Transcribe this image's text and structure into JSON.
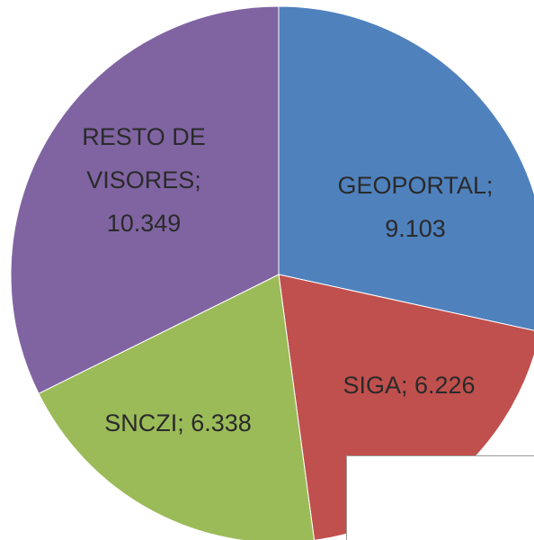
{
  "chart_data": {
    "type": "pie",
    "values": [
      9103,
      6226,
      6338,
      10349
    ],
    "value_labels": [
      "GEOPORTAL; 9.103",
      "SIGA; 6.226",
      "SNCZI; 6.338",
      "RESTO DE VISORES; 10.349"
    ],
    "colors": [
      "#4f81bd",
      "#c0504d",
      "#9bbb59",
      "#8064a2"
    ]
  }
}
